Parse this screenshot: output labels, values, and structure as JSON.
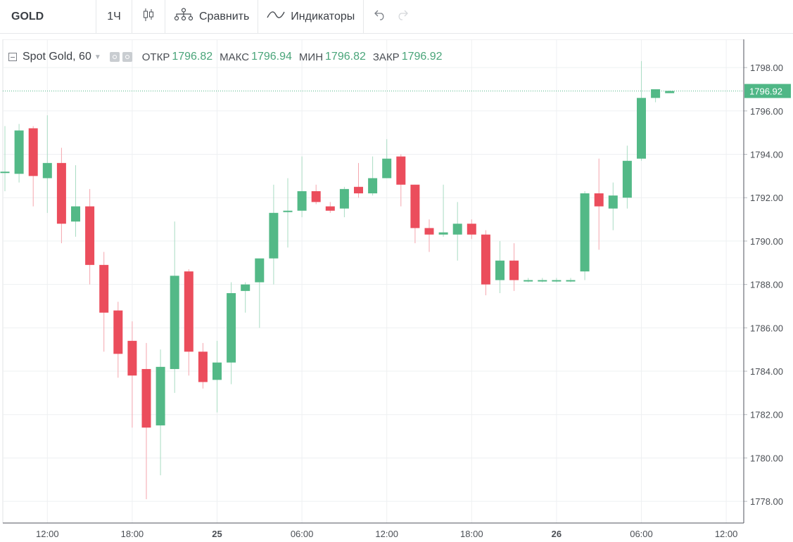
{
  "toolbar": {
    "symbol": "GOLD",
    "interval": "1Ч",
    "compare_label": "Сравнить",
    "indicators_label": "Индикаторы"
  },
  "legend": {
    "title": "Spot Gold, 60",
    "open_label": "ОТКР",
    "open_value": "1796.82",
    "high_label": "МАКС",
    "high_value": "1796.94",
    "low_label": "МИН",
    "low_value": "1796.82",
    "close_label": "ЗАКР",
    "close_value": "1796.92"
  },
  "colors": {
    "up": "#53b987",
    "down": "#eb4d5c",
    "grid": "#eef0f2",
    "last_price_line": "#4fb786",
    "axis_text": "#4a4e54"
  },
  "chart_data": {
    "type": "candlestick",
    "symbol": "Spot Gold",
    "interval": "60",
    "ylim": [
      1777,
      1799.3
    ],
    "y_ticks": [
      "1778.00",
      "1780.00",
      "1782.00",
      "1784.00",
      "1786.00",
      "1788.00",
      "1790.00",
      "1792.00",
      "1794.00",
      "1796.00",
      "1798.00"
    ],
    "x_tick_labels": [
      {
        "label": "12:00",
        "t": 3
      },
      {
        "label": "18:00",
        "t": 9
      },
      {
        "label": "25",
        "t": 15
      },
      {
        "label": "06:00",
        "t": 21
      },
      {
        "label": "12:00",
        "t": 27
      },
      {
        "label": "18:00",
        "t": 33
      },
      {
        "label": "26",
        "t": 39
      },
      {
        "label": "06:00",
        "t": 45
      },
      {
        "label": "12:00",
        "t": 51
      }
    ],
    "last_price": "1796.92",
    "candles": [
      {
        "t": 0,
        "o": 1793.2,
        "h": 1795.3,
        "l": 1792.3,
        "c": 1793.2
      },
      {
        "t": 1,
        "o": 1793.1,
        "h": 1795.4,
        "l": 1792.7,
        "c": 1795.1
      },
      {
        "t": 2,
        "o": 1795.2,
        "h": 1795.3,
        "l": 1791.6,
        "c": 1793.0
      },
      {
        "t": 3,
        "o": 1792.9,
        "h": 1795.8,
        "l": 1791.3,
        "c": 1793.6
      },
      {
        "t": 4,
        "o": 1793.6,
        "h": 1794.3,
        "l": 1789.9,
        "c": 1790.8
      },
      {
        "t": 5,
        "o": 1790.9,
        "h": 1793.5,
        "l": 1790.2,
        "c": 1791.6
      },
      {
        "t": 6,
        "o": 1791.6,
        "h": 1792.4,
        "l": 1788.0,
        "c": 1788.9
      },
      {
        "t": 7,
        "o": 1788.9,
        "h": 1789.5,
        "l": 1784.9,
        "c": 1786.7
      },
      {
        "t": 8,
        "o": 1786.8,
        "h": 1787.2,
        "l": 1783.7,
        "c": 1784.8
      },
      {
        "t": 9,
        "o": 1785.4,
        "h": 1786.3,
        "l": 1781.4,
        "c": 1783.8
      },
      {
        "t": 10,
        "o": 1784.1,
        "h": 1785.3,
        "l": 1778.1,
        "c": 1781.4
      },
      {
        "t": 11,
        "o": 1781.5,
        "h": 1785.0,
        "l": 1779.2,
        "c": 1784.2
      },
      {
        "t": 12,
        "o": 1784.1,
        "h": 1790.9,
        "l": 1783.0,
        "c": 1788.4
      },
      {
        "t": 13,
        "o": 1788.6,
        "h": 1788.7,
        "l": 1783.8,
        "c": 1784.9
      },
      {
        "t": 14,
        "o": 1784.9,
        "h": 1785.3,
        "l": 1783.2,
        "c": 1783.5
      },
      {
        "t": 15,
        "o": 1783.6,
        "h": 1785.4,
        "l": 1782.1,
        "c": 1784.4
      },
      {
        "t": 16,
        "o": 1784.4,
        "h": 1788.1,
        "l": 1783.4,
        "c": 1787.6
      },
      {
        "t": 17,
        "o": 1787.7,
        "h": 1788.1,
        "l": 1786.7,
        "c": 1788.0
      },
      {
        "t": 18,
        "o": 1788.1,
        "h": 1789.1,
        "l": 1786.0,
        "c": 1789.2
      },
      {
        "t": 19,
        "o": 1789.2,
        "h": 1792.6,
        "l": 1788.0,
        "c": 1791.3
      },
      {
        "t": 20,
        "o": 1791.4,
        "h": 1792.9,
        "l": 1789.7,
        "c": 1791.4
      },
      {
        "t": 21,
        "o": 1791.4,
        "h": 1793.9,
        "l": 1791.1,
        "c": 1792.3
      },
      {
        "t": 22,
        "o": 1792.3,
        "h": 1792.6,
        "l": 1791.7,
        "c": 1791.8
      },
      {
        "t": 23,
        "o": 1791.6,
        "h": 1791.8,
        "l": 1791.3,
        "c": 1791.4
      },
      {
        "t": 24,
        "o": 1791.5,
        "h": 1792.5,
        "l": 1791.1,
        "c": 1792.4
      },
      {
        "t": 25,
        "o": 1792.5,
        "h": 1793.6,
        "l": 1792.0,
        "c": 1792.2
      },
      {
        "t": 26,
        "o": 1792.2,
        "h": 1793.9,
        "l": 1792.1,
        "c": 1792.9
      },
      {
        "t": 27,
        "o": 1792.9,
        "h": 1794.7,
        "l": 1792.9,
        "c": 1793.8
      },
      {
        "t": 28,
        "o": 1793.9,
        "h": 1794.0,
        "l": 1791.6,
        "c": 1792.6
      },
      {
        "t": 29,
        "o": 1792.6,
        "h": 1792.6,
        "l": 1789.9,
        "c": 1790.6
      },
      {
        "t": 30,
        "o": 1790.6,
        "h": 1791.0,
        "l": 1789.5,
        "c": 1790.3
      },
      {
        "t": 31,
        "o": 1790.3,
        "h": 1792.6,
        "l": 1790.2,
        "c": 1790.4
      },
      {
        "t": 32,
        "o": 1790.3,
        "h": 1791.8,
        "l": 1789.1,
        "c": 1790.8
      },
      {
        "t": 33,
        "o": 1790.8,
        "h": 1791.0,
        "l": 1790.1,
        "c": 1790.3
      },
      {
        "t": 34,
        "o": 1790.3,
        "h": 1790.5,
        "l": 1787.5,
        "c": 1788.0
      },
      {
        "t": 35,
        "o": 1788.2,
        "h": 1790.0,
        "l": 1787.6,
        "c": 1789.1
      },
      {
        "t": 36,
        "o": 1789.1,
        "h": 1789.9,
        "l": 1787.7,
        "c": 1788.2
      },
      {
        "t": 37,
        "o": 1788.2,
        "h": 1788.3,
        "l": 1788.1,
        "c": 1788.2
      },
      {
        "t": 38,
        "o": 1788.2,
        "h": 1788.3,
        "l": 1788.1,
        "c": 1788.2
      },
      {
        "t": 39,
        "o": 1788.2,
        "h": 1788.3,
        "l": 1788.1,
        "c": 1788.2
      },
      {
        "t": 40,
        "o": 1788.2,
        "h": 1788.3,
        "l": 1788.1,
        "c": 1788.2
      },
      {
        "t": 41,
        "o": 1788.6,
        "h": 1792.3,
        "l": 1788.2,
        "c": 1792.2
      },
      {
        "t": 42,
        "o": 1792.2,
        "h": 1793.8,
        "l": 1789.6,
        "c": 1791.6
      },
      {
        "t": 43,
        "o": 1791.5,
        "h": 1792.7,
        "l": 1790.5,
        "c": 1792.1
      },
      {
        "t": 44,
        "o": 1792.0,
        "h": 1794.4,
        "l": 1791.5,
        "c": 1793.7
      },
      {
        "t": 45,
        "o": 1793.8,
        "h": 1798.3,
        "l": 1793.7,
        "c": 1796.6
      },
      {
        "t": 46,
        "o": 1796.6,
        "h": 1797.0,
        "l": 1796.4,
        "c": 1797.0
      },
      {
        "t": 47,
        "o": 1796.82,
        "h": 1796.94,
        "l": 1796.82,
        "c": 1796.92
      }
    ]
  }
}
